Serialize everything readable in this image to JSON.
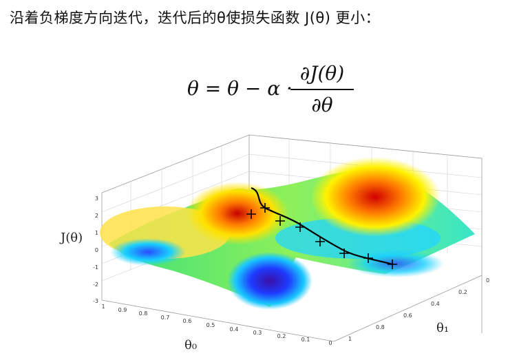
{
  "caption": "沿着负梯度方向迭代，迭代后的θ使损失函数 J(θ) 更小：",
  "formula": {
    "lhs": "θ = θ − α ·",
    "numerator": "∂J(θ)",
    "denominator": "∂θ"
  },
  "plot": {
    "z_axis_label": "J(θ)",
    "x_axis_label": "θ₀",
    "y_axis_label": "θ₁",
    "z_ticks": [
      "3",
      "2",
      "1",
      "0",
      "-1",
      "-2",
      "-3"
    ],
    "x_ticks": [
      "1",
      "0.9",
      "0.8",
      "0.7",
      "0.6",
      "0.5",
      "0.4",
      "0.3",
      "0.2",
      "0.1",
      "0"
    ],
    "y_ticks": [
      "0",
      "0.2",
      "0.4",
      "0.6",
      "0.8",
      "1"
    ],
    "colors": {
      "high": "#d7191c",
      "mid_high": "#fdae61",
      "mid": "#ffff66",
      "mid_low": "#66ff99",
      "low": "#2b83ba",
      "min": "#5e3c99",
      "path": "#000000"
    }
  }
}
